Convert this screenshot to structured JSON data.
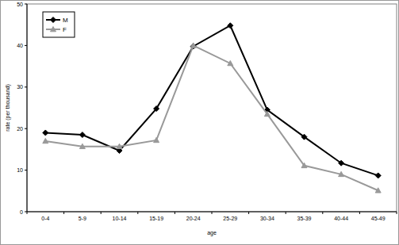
{
  "chart_data": {
    "type": "line",
    "x_label": "age",
    "y_label": "rate (per thousand)",
    "categories": [
      "0-4",
      "5-9",
      "10-14",
      "15-19",
      "20-24",
      "25-29",
      "30-34",
      "35-39",
      "40-44",
      "45-49"
    ],
    "series": [
      {
        "name": "M",
        "color": "#000000",
        "marker": "diamond",
        "line_style": "solid",
        "values": [
          19,
          18.5,
          14.7,
          24.8,
          39.8,
          44.8,
          24.5,
          18,
          11.7,
          8.7
        ]
      },
      {
        "name": "F",
        "color": "#999999",
        "marker": "triangle",
        "line_style": "solid",
        "values": [
          17,
          15.7,
          15.7,
          17.2,
          40,
          35.7,
          23.5,
          11.1,
          9,
          5.1
        ]
      }
    ],
    "ylim": [
      0,
      50
    ],
    "yticks": [
      0,
      10,
      20,
      30,
      40,
      50
    ],
    "grid": false,
    "legend": "upper left"
  }
}
